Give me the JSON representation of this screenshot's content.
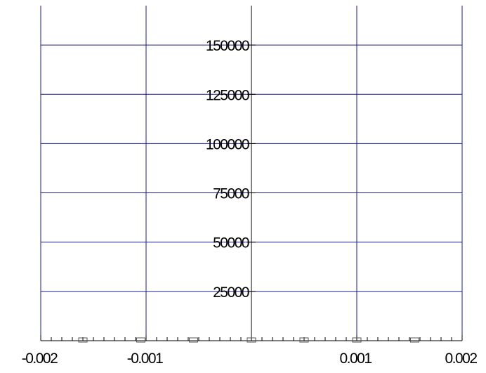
{
  "chart_data": {
    "type": "scatter",
    "title": "",
    "xlabel": "",
    "ylabel": "",
    "xlim": [
      -0.002,
      0.002
    ],
    "ylim": [
      0,
      170000
    ],
    "x_ticks": [
      -0.002,
      -0.001,
      0.001,
      0.002
    ],
    "x_tick_labels": [
      "-0.002",
      "-0.001",
      "0.001",
      "0.002"
    ],
    "y_ticks": [
      25000,
      50000,
      75000,
      100000,
      125000,
      150000
    ],
    "y_tick_labels": [
      "25000",
      "50000",
      "75000",
      "100000",
      "125000",
      "150000"
    ],
    "x_gridlines": [
      -0.002,
      -0.001,
      0.001,
      0.002
    ],
    "y_gridlines": [
      25000,
      50000,
      75000,
      100000,
      125000,
      150000
    ],
    "grid": true,
    "x_minor_step": 0.0001,
    "series": [
      {
        "marker": "square-open",
        "points": [
          {
            "x": -0.0016,
            "y": 0
          },
          {
            "x": -0.00105,
            "y": 0
          },
          {
            "x": -0.00055,
            "y": 0
          },
          {
            "x": 0.0,
            "y": 0
          },
          {
            "x": 0.0005,
            "y": 0
          },
          {
            "x": 0.001,
            "y": 0
          },
          {
            "x": 0.00155,
            "y": 0
          }
        ]
      }
    ],
    "colors": {
      "grid": "#1c1c8c",
      "axis": "#000000",
      "marker": "#555555"
    }
  }
}
